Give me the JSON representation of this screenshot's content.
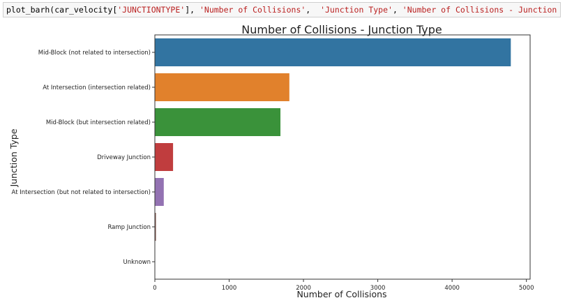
{
  "code_cell": {
    "parts": [
      {
        "text": "plot_barh(car_velocity[",
        "kind": "plain"
      },
      {
        "text": "'JUNCTIONTYPE'",
        "kind": "str"
      },
      {
        "text": "], ",
        "kind": "plain"
      },
      {
        "text": "'Number of Collisions'",
        "kind": "str"
      },
      {
        "text": ",  ",
        "kind": "plain"
      },
      {
        "text": "'Junction Type'",
        "kind": "str"
      },
      {
        "text": ", ",
        "kind": "plain"
      },
      {
        "text": "'Number of Collisions - Junction Type'",
        "kind": "str"
      },
      {
        "text": ")",
        "kind": "plain"
      }
    ]
  },
  "chart_data": {
    "type": "bar",
    "orientation": "horizontal",
    "title": "Number of Collisions - Junction Type",
    "xlabel": "Number of Collisions",
    "ylabel": "Junction Type",
    "categories": [
      "Mid-Block (not related to intersection)",
      "At Intersection (intersection related)",
      "Mid-Block (but intersection related)",
      "Driveway Junction",
      "At Intersection (but not related to intersection)",
      "Ramp Junction",
      "Unknown"
    ],
    "values": [
      4790,
      1810,
      1690,
      245,
      120,
      15,
      2
    ],
    "colors": [
      "#3274a1",
      "#e1812c",
      "#3a923a",
      "#c03d3e",
      "#9372b2",
      "#845b53",
      "#d684bd"
    ],
    "xlim": [
      0,
      5050
    ],
    "xticks": [
      0,
      1000,
      2000,
      3000,
      4000,
      5000
    ],
    "grid": false
  }
}
